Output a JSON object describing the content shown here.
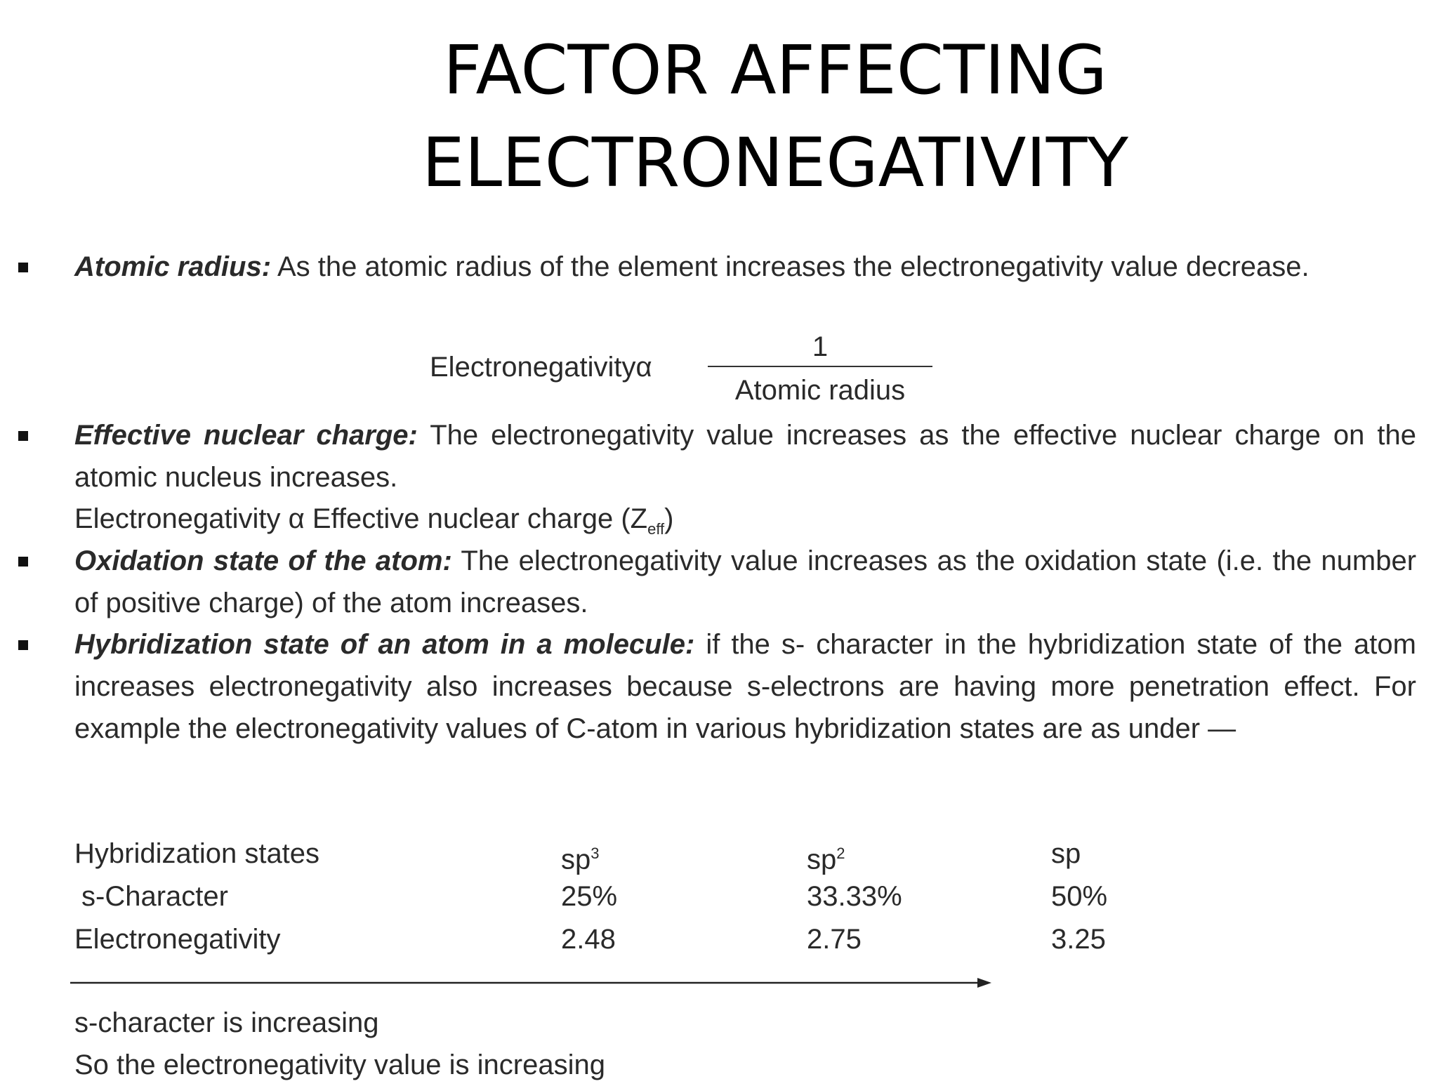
{
  "title": [
    "FACTOR AFFECTING",
    "ELECTRONEGATIVITY"
  ],
  "points": [
    {
      "term": "Atomic radius:",
      "text": "As the atomic radius of the element increases the electronegativity value decrease."
    },
    {
      "term": "Effective nuclear charge:",
      "text": "The electronegativity value increases as the effective nuclear charge on the atomic nucleus increases."
    },
    {
      "term": "Oxidation state of the atom:",
      "text": "The electronegativity value increases as the oxidation state (i.e. the number of positive charge) of the atom increases."
    },
    {
      "term": "Hybridization state of an atom in a molecule:",
      "text": "if the s- character in the hybridization state of the atom increases electronegativity also increases because s-electrons are having more penetration effect. For example the electronegativity values of C-atom in various hybridization states are as under —"
    }
  ],
  "formula1": {
    "left": "Electronegativityα",
    "numerator": "1",
    "denominator": "Atomic radius"
  },
  "formula2": {
    "text": "Electronegativity α Effective nuclear charge (Z",
    "sub": "eff",
    "close": ")"
  },
  "table": {
    "header": [
      {
        "text": "Hybridization states"
      },
      {
        "text": "sp",
        "sup": "3"
      },
      {
        "text": "sp",
        "sup": "2"
      },
      {
        "text": "sp"
      }
    ],
    "rows": [
      [
        "s-Character",
        "25%",
        "33.33%",
        "50%"
      ],
      [
        "Electronegativity",
        "2.48",
        "2.75",
        "3.25"
      ]
    ]
  },
  "footer": [
    "s-character is increasing",
    "So the electronegativity value is increasing"
  ]
}
